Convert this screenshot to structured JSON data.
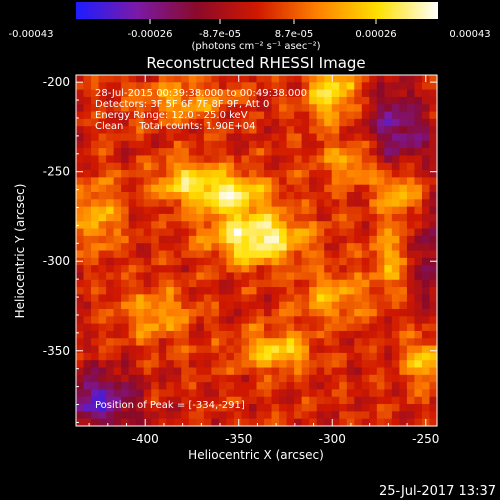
{
  "colorbar": {
    "ticks": [
      "-0.00043",
      "-0.00026",
      "-8.7e-05",
      "8.7e-05",
      "0.00026",
      "0.00043"
    ],
    "units": "(photons cm⁻² s⁻¹ asec⁻²)",
    "colors": [
      "#1d1dff",
      "#7a1aa8",
      "#8a0a2a",
      "#d01800",
      "#ff8000",
      "#ffe000",
      "#ffffff"
    ]
  },
  "title": "Reconstructed RHESSI Image",
  "annotations": [
    "28-Jul-2015 00:39:38.000 to 00:49:38.000",
    "Detectors: 3F 5F 6F 7F 8F 9F, Att 0",
    "Energy Range: 12.0 - 25.0 keV",
    "Clean     Total counts: 1.90E+04"
  ],
  "peak_label": "Position of Peak = [-334,-291]",
  "timestamp": "25-Jul-2017 13:37",
  "chart_data": {
    "type": "heatmap",
    "title": "Reconstructed RHESSI Image",
    "xlabel": "Heliocentric X (arcsec)",
    "ylabel": "Heliocentric Y (arcsec)",
    "xlim": [
      -437,
      -244
    ],
    "ylim": [
      -392,
      -196
    ],
    "x_ticks": [
      -400,
      -350,
      -300,
      -250
    ],
    "y_ticks": [
      -200,
      -250,
      -300,
      -350
    ],
    "x_tick_labels": [
      "-400",
      "-350",
      "-300",
      "-250"
    ],
    "y_tick_labels": [
      "-200",
      "-250",
      "-300",
      "-350"
    ],
    "colorbar_range": [
      -0.00043,
      0.00043
    ],
    "peak": [
      -334,
      -291
    ],
    "blobs": [
      {
        "x": -340,
        "y": -287,
        "amp": 1.0,
        "sx": 18,
        "sy": 10
      },
      {
        "x": -355,
        "y": -262,
        "amp": 0.85,
        "sx": 14,
        "sy": 8
      },
      {
        "x": -380,
        "y": -255,
        "amp": 0.6,
        "sx": 12,
        "sy": 9
      },
      {
        "x": -300,
        "y": -205,
        "amp": 0.75,
        "sx": 10,
        "sy": 12
      },
      {
        "x": -265,
        "y": -262,
        "amp": 0.65,
        "sx": 8,
        "sy": 8
      },
      {
        "x": -250,
        "y": -355,
        "amp": 0.6,
        "sx": 8,
        "sy": 10
      },
      {
        "x": -330,
        "y": -350,
        "amp": 0.7,
        "sx": 14,
        "sy": 8
      },
      {
        "x": -425,
        "y": -275,
        "amp": 0.55,
        "sx": 8,
        "sy": 14
      },
      {
        "x": -395,
        "y": -330,
        "amp": 0.5,
        "sx": 14,
        "sy": 10
      },
      {
        "x": -300,
        "y": -320,
        "amp": 0.55,
        "sx": 12,
        "sy": 9
      },
      {
        "x": -290,
        "y": -245,
        "amp": 0.5,
        "sx": 10,
        "sy": 9
      },
      {
        "x": -380,
        "y": -210,
        "amp": 0.45,
        "sx": 18,
        "sy": 8
      },
      {
        "x": -270,
        "y": -300,
        "amp": 0.45,
        "sx": 8,
        "sy": 14
      }
    ],
    "negative_regions": [
      {
        "x": -425,
        "y": -378,
        "amp": 0.8,
        "sx": 15,
        "sy": 12
      },
      {
        "x": -265,
        "y": -225,
        "amp": 0.7,
        "sx": 12,
        "sy": 16
      },
      {
        "x": -248,
        "y": -300,
        "amp": 0.5,
        "sx": 6,
        "sy": 20
      }
    ]
  }
}
